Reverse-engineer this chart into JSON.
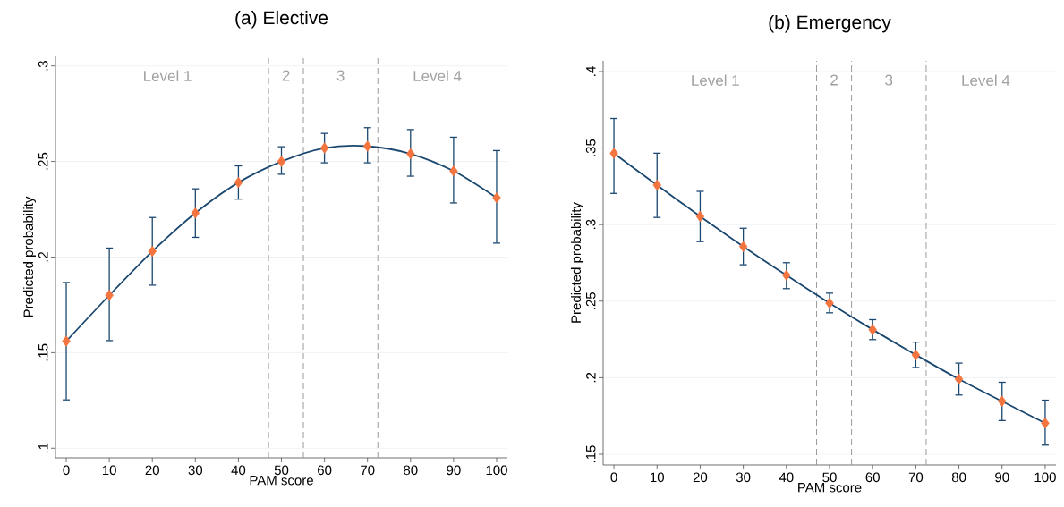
{
  "chart_data": [
    {
      "type": "line",
      "title": "(a) Elective",
      "xlabel": "PAM score",
      "ylabel": "Predicted probability",
      "x": [
        0,
        10,
        20,
        30,
        40,
        50,
        60,
        70,
        80,
        90,
        100
      ],
      "xlim": [
        -2.5,
        102.5
      ],
      "ylim": [
        0.095,
        0.305
      ],
      "xticks": [
        0,
        10,
        20,
        30,
        40,
        50,
        60,
        70,
        80,
        90,
        100
      ],
      "yticks": [
        {
          "value": 0.1,
          "label": ".1"
        },
        {
          "value": 0.15,
          "label": ".15"
        },
        {
          "value": 0.2,
          "label": ".2"
        },
        {
          "value": 0.25,
          "label": ".25"
        },
        {
          "value": 0.3,
          "label": ".3"
        }
      ],
      "grid": "y",
      "series": [
        {
          "color": "#1a476f",
          "marker": "none",
          "line_style": "solid",
          "values": [
            0.156,
            0.18,
            0.203,
            0.223,
            0.239,
            0.25,
            0.257,
            0.258,
            0.254,
            0.245,
            0.231
          ],
          "errors": [
            [
              0.125,
              0.187
            ],
            [
              0.156,
              0.205
            ],
            [
              0.185,
              0.221
            ],
            [
              0.21,
              0.236
            ],
            [
              0.23,
              0.248
            ],
            [
              0.243,
              0.258
            ],
            [
              0.249,
              0.265
            ],
            [
              0.249,
              0.268
            ],
            [
              0.242,
              0.267
            ],
            [
              0.228,
              0.263
            ],
            [
              0.207,
              0.256
            ]
          ]
        },
        {
          "type": "scatter",
          "color": "#f4743f",
          "marker": "diamond",
          "values": [
            0.156,
            0.18,
            0.203,
            0.223,
            0.239,
            0.25,
            0.257,
            0.258,
            0.254,
            0.245,
            0.231
          ]
        }
      ],
      "ref_lines": [
        {
          "axis": "x",
          "value": 47,
          "color": "#9a9a9a",
          "line_style": "dashed"
        },
        {
          "axis": "x",
          "value": 55.1,
          "color": "#9a9a9a",
          "line_style": "dashed"
        },
        {
          "axis": "x",
          "value": 72.4,
          "color": "#9a9a9a",
          "line_style": "dashed"
        }
      ],
      "annotations": [
        "Level 1",
        "2",
        "3",
        "Level 4"
      ]
    },
    {
      "type": "line",
      "title": "(b) Emergency",
      "xlabel": "PAM score",
      "ylabel": "Predicted probability",
      "x": [
        0,
        10,
        20,
        30,
        40,
        50,
        60,
        70,
        80,
        90,
        100
      ],
      "xlim": [
        -2.5,
        102.5
      ],
      "ylim": [
        0.143,
        0.407
      ],
      "xticks": [
        0,
        10,
        20,
        30,
        40,
        50,
        60,
        70,
        80,
        90,
        100
      ],
      "yticks": [
        {
          "value": 0.15,
          "label": ".15"
        },
        {
          "value": 0.2,
          "label": ".2"
        },
        {
          "value": 0.25,
          "label": ".25"
        },
        {
          "value": 0.3,
          "label": ".3"
        },
        {
          "value": 0.35,
          "label": ".35"
        },
        {
          "value": 0.4,
          "label": ".4"
        }
      ],
      "grid": "y",
      "series": [
        {
          "color": "#1a476f",
          "marker": "none",
          "line_style": "solid",
          "values": [
            0.3465,
            0.3258,
            0.3054,
            0.2857,
            0.2669,
            0.2487,
            0.2314,
            0.2149,
            0.1991,
            0.1846,
            0.1703
          ],
          "errors": [
            [
              0.32,
              0.3697
            ],
            [
              0.3043,
              0.347
            ],
            [
              0.2885,
              0.3221
            ],
            [
              0.2734,
              0.298
            ],
            [
              0.2578,
              0.2755
            ],
            [
              0.242,
              0.2556
            ],
            [
              0.2245,
              0.2383
            ],
            [
              0.2063,
              0.2236
            ],
            [
              0.1883,
              0.2099
            ],
            [
              0.1716,
              0.1974
            ],
            [
              0.1556,
              0.1857
            ]
          ]
        },
        {
          "type": "scatter",
          "color": "#f4743f",
          "marker": "diamond",
          "values": [
            0.3465,
            0.3258,
            0.3054,
            0.2857,
            0.2669,
            0.2487,
            0.2314,
            0.2149,
            0.1991,
            0.1846,
            0.1703
          ]
        }
      ],
      "ref_lines": [
        {
          "axis": "x",
          "value": 47,
          "color": "#9a9a9a",
          "line_style": "dashed"
        },
        {
          "axis": "x",
          "value": 55.1,
          "color": "#9a9a9a",
          "line_style": "dashed"
        },
        {
          "axis": "x",
          "value": 72.4,
          "color": "#9a9a9a",
          "line_style": "dashed"
        }
      ],
      "annotations": [
        "Level 1",
        "2",
        "3",
        "Level 4"
      ]
    }
  ]
}
